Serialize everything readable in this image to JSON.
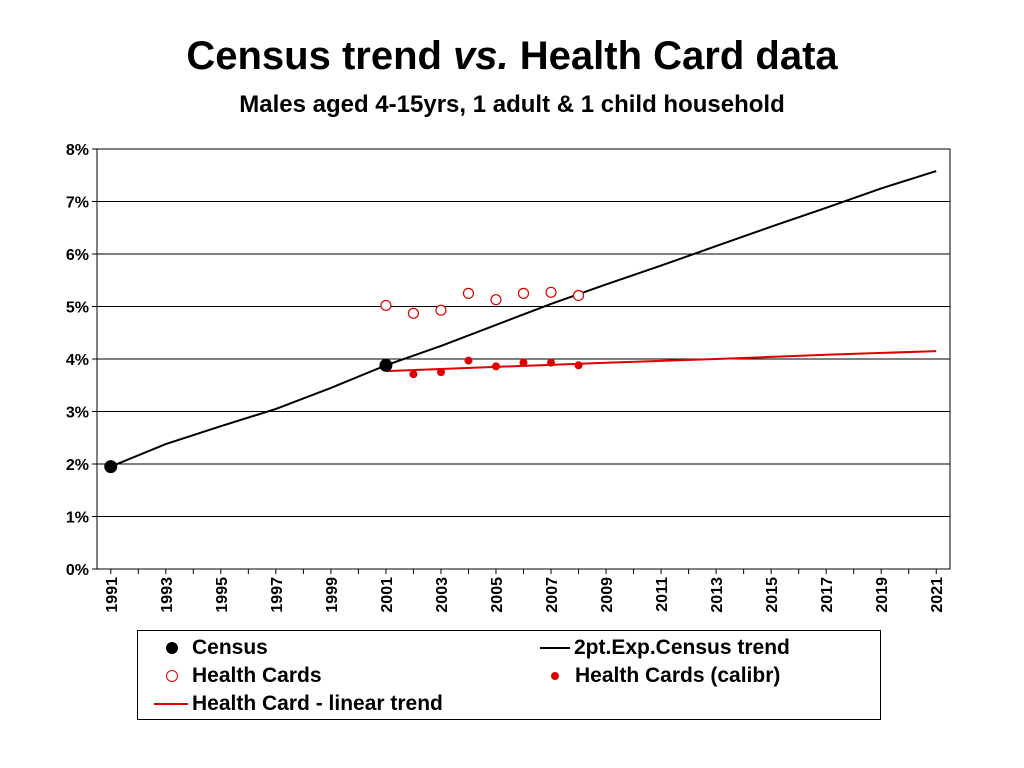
{
  "title": {
    "main_a": "Census trend ",
    "main_em": "vs.",
    "main_b": " Health Card data"
  },
  "subtitle": "Males aged 4-15yrs, 1 adult & 1 child household",
  "colors": {
    "census": "#000000",
    "census_trend": "#000000",
    "health": "#dd0000",
    "grid": "#000000"
  },
  "chart_data": {
    "type": "scatter",
    "xlim": [
      1990.5,
      2021.5
    ],
    "ylim": [
      0,
      8
    ],
    "y_ticks": [
      "0%",
      "1%",
      "2%",
      "3%",
      "4%",
      "5%",
      "6%",
      "7%",
      "8%"
    ],
    "x_ticks": [
      "1991",
      "1993",
      "1995",
      "1997",
      "1999",
      "2001",
      "2003",
      "2005",
      "2007",
      "2009",
      "2011",
      "2013",
      "2015",
      "2017",
      "2019",
      "2021"
    ],
    "grid": "horizontal",
    "legend_position": "bottom",
    "series": [
      {
        "name": "Census",
        "kind": "marker-filled-large",
        "color": "#000000",
        "points": [
          [
            1991,
            1.95
          ],
          [
            2001,
            3.88
          ]
        ]
      },
      {
        "name": "2pt.Exp.Census trend",
        "kind": "line",
        "color": "#000000",
        "points": [
          [
            1991,
            1.95
          ],
          [
            1993,
            2.38
          ],
          [
            1995,
            2.72
          ],
          [
            1997,
            3.05
          ],
          [
            1999,
            3.45
          ],
          [
            2001,
            3.88
          ],
          [
            2003,
            4.25
          ],
          [
            2005,
            4.65
          ],
          [
            2007,
            5.05
          ],
          [
            2009,
            5.42
          ],
          [
            2011,
            5.78
          ],
          [
            2013,
            6.15
          ],
          [
            2015,
            6.52
          ],
          [
            2017,
            6.88
          ],
          [
            2019,
            7.25
          ],
          [
            2021,
            7.58
          ]
        ]
      },
      {
        "name": "Health Cards",
        "kind": "marker-hollow",
        "color": "#dd0000",
        "points": [
          [
            2001,
            5.02
          ],
          [
            2002,
            4.87
          ],
          [
            2003,
            4.93
          ],
          [
            2004,
            5.25
          ],
          [
            2005,
            5.13
          ],
          [
            2006,
            5.25
          ],
          [
            2007,
            5.27
          ],
          [
            2008,
            5.21
          ]
        ]
      },
      {
        "name": "Health Cards (calibr)",
        "kind": "marker-filled-small",
        "color": "#dd0000",
        "points": [
          [
            2001,
            3.86
          ],
          [
            2002,
            3.71
          ],
          [
            2003,
            3.75
          ],
          [
            2004,
            3.97
          ],
          [
            2005,
            3.86
          ],
          [
            2006,
            3.93
          ],
          [
            2007,
            3.93
          ],
          [
            2008,
            3.88
          ]
        ]
      },
      {
        "name": "Health Card - linear trend",
        "kind": "line",
        "color": "#dd0000",
        "points": [
          [
            2001,
            3.77
          ],
          [
            2009,
            3.93
          ],
          [
            2013,
            4.0
          ],
          [
            2017,
            4.08
          ],
          [
            2021,
            4.15
          ]
        ]
      }
    ]
  },
  "legend": {
    "census": "Census",
    "census_trend": "2pt.Exp.Census trend",
    "health_cards": "Health Cards",
    "health_cards_calibr": "Health Cards (calibr)",
    "health_linear": "Health Card - linear trend"
  }
}
